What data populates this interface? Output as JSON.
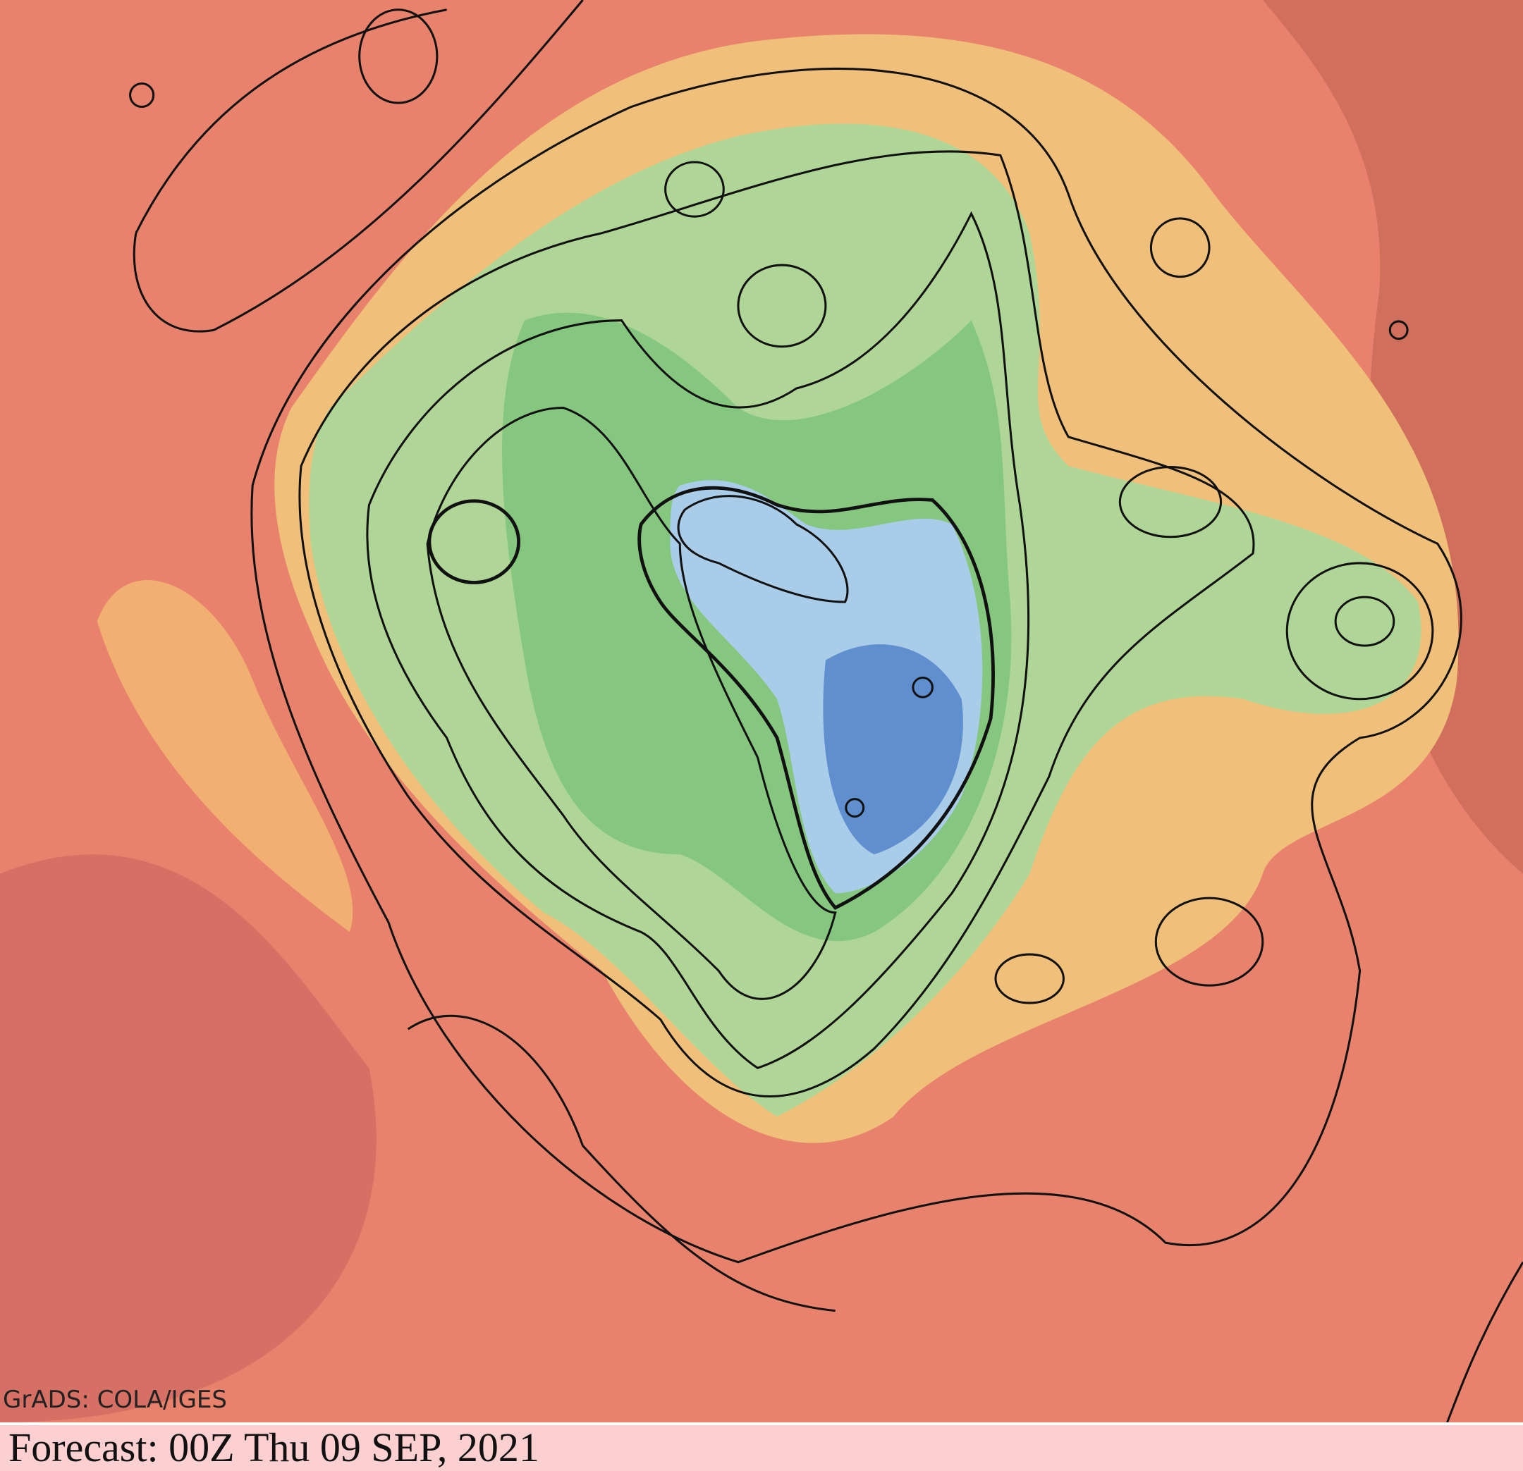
{
  "map": {
    "credit": "GrADS: COLA/IGES"
  },
  "footer": {
    "forecast": "Forecast: 00Z Thu 09 SEP, 2021"
  }
}
